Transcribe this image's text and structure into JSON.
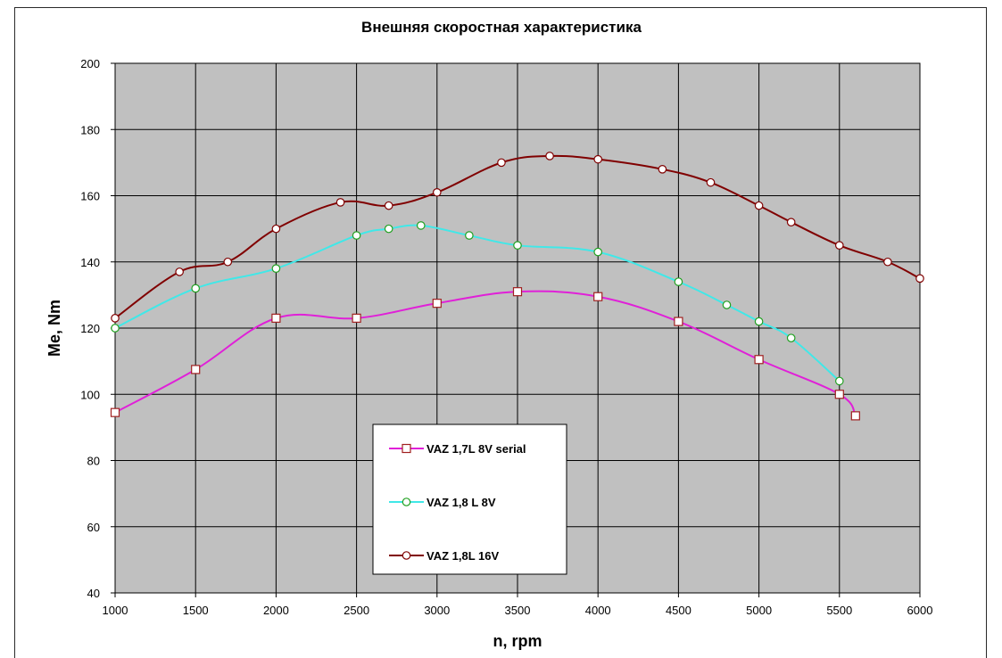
{
  "chart_data": {
    "type": "line",
    "title": "Внешняя скоростная характеристика",
    "xlabel": "n, rpm",
    "ylabel": "Me, Nm",
    "xlim": [
      1000,
      6000
    ],
    "ylim": [
      40,
      200
    ],
    "xticks": [
      1000,
      1500,
      2000,
      2500,
      3000,
      3500,
      4000,
      4500,
      5000,
      5500,
      6000
    ],
    "yticks": [
      40,
      60,
      80,
      100,
      120,
      140,
      160,
      180,
      200
    ],
    "grid": true,
    "plot_background": "#c0c0c0",
    "legend_position": "bottom-center",
    "series": [
      {
        "name": "VAZ 1,7L 8V serial",
        "color": "#e020d8",
        "marker": "square",
        "marker_edge": "#a02020",
        "marker_fill": "#ffffff",
        "x": [
          1000,
          1500,
          2000,
          2500,
          3000,
          3500,
          4000,
          4500,
          5000,
          5500,
          5600
        ],
        "y": [
          94.5,
          107.5,
          123,
          123,
          127.5,
          131,
          129.5,
          122,
          110.5,
          100,
          93.5
        ]
      },
      {
        "name": "VAZ 1,8 L 8V",
        "color": "#40e8e8",
        "marker": "circle",
        "marker_edge": "#20a020",
        "marker_fill": "#ffffff",
        "x": [
          1000,
          1500,
          2000,
          2500,
          2700,
          2900,
          3200,
          3500,
          4000,
          4500,
          4800,
          5000,
          5200,
          5500
        ],
        "y": [
          120,
          132,
          138,
          148,
          150,
          151,
          148,
          145,
          143,
          134,
          127,
          122,
          117,
          104
        ]
      },
      {
        "name": "VAZ 1,8L 16V",
        "color": "#800000",
        "marker": "circle",
        "marker_edge": "#800000",
        "marker_fill": "#ffffff",
        "x": [
          1000,
          1400,
          1700,
          2000,
          2400,
          2700,
          3000,
          3400,
          3700,
          4000,
          4400,
          4700,
          5000,
          5200,
          5500,
          5800,
          6000
        ],
        "y": [
          123,
          137,
          140,
          150,
          158,
          157,
          161,
          170,
          172,
          171,
          168,
          164,
          157,
          152,
          145,
          140,
          135
        ]
      }
    ]
  }
}
